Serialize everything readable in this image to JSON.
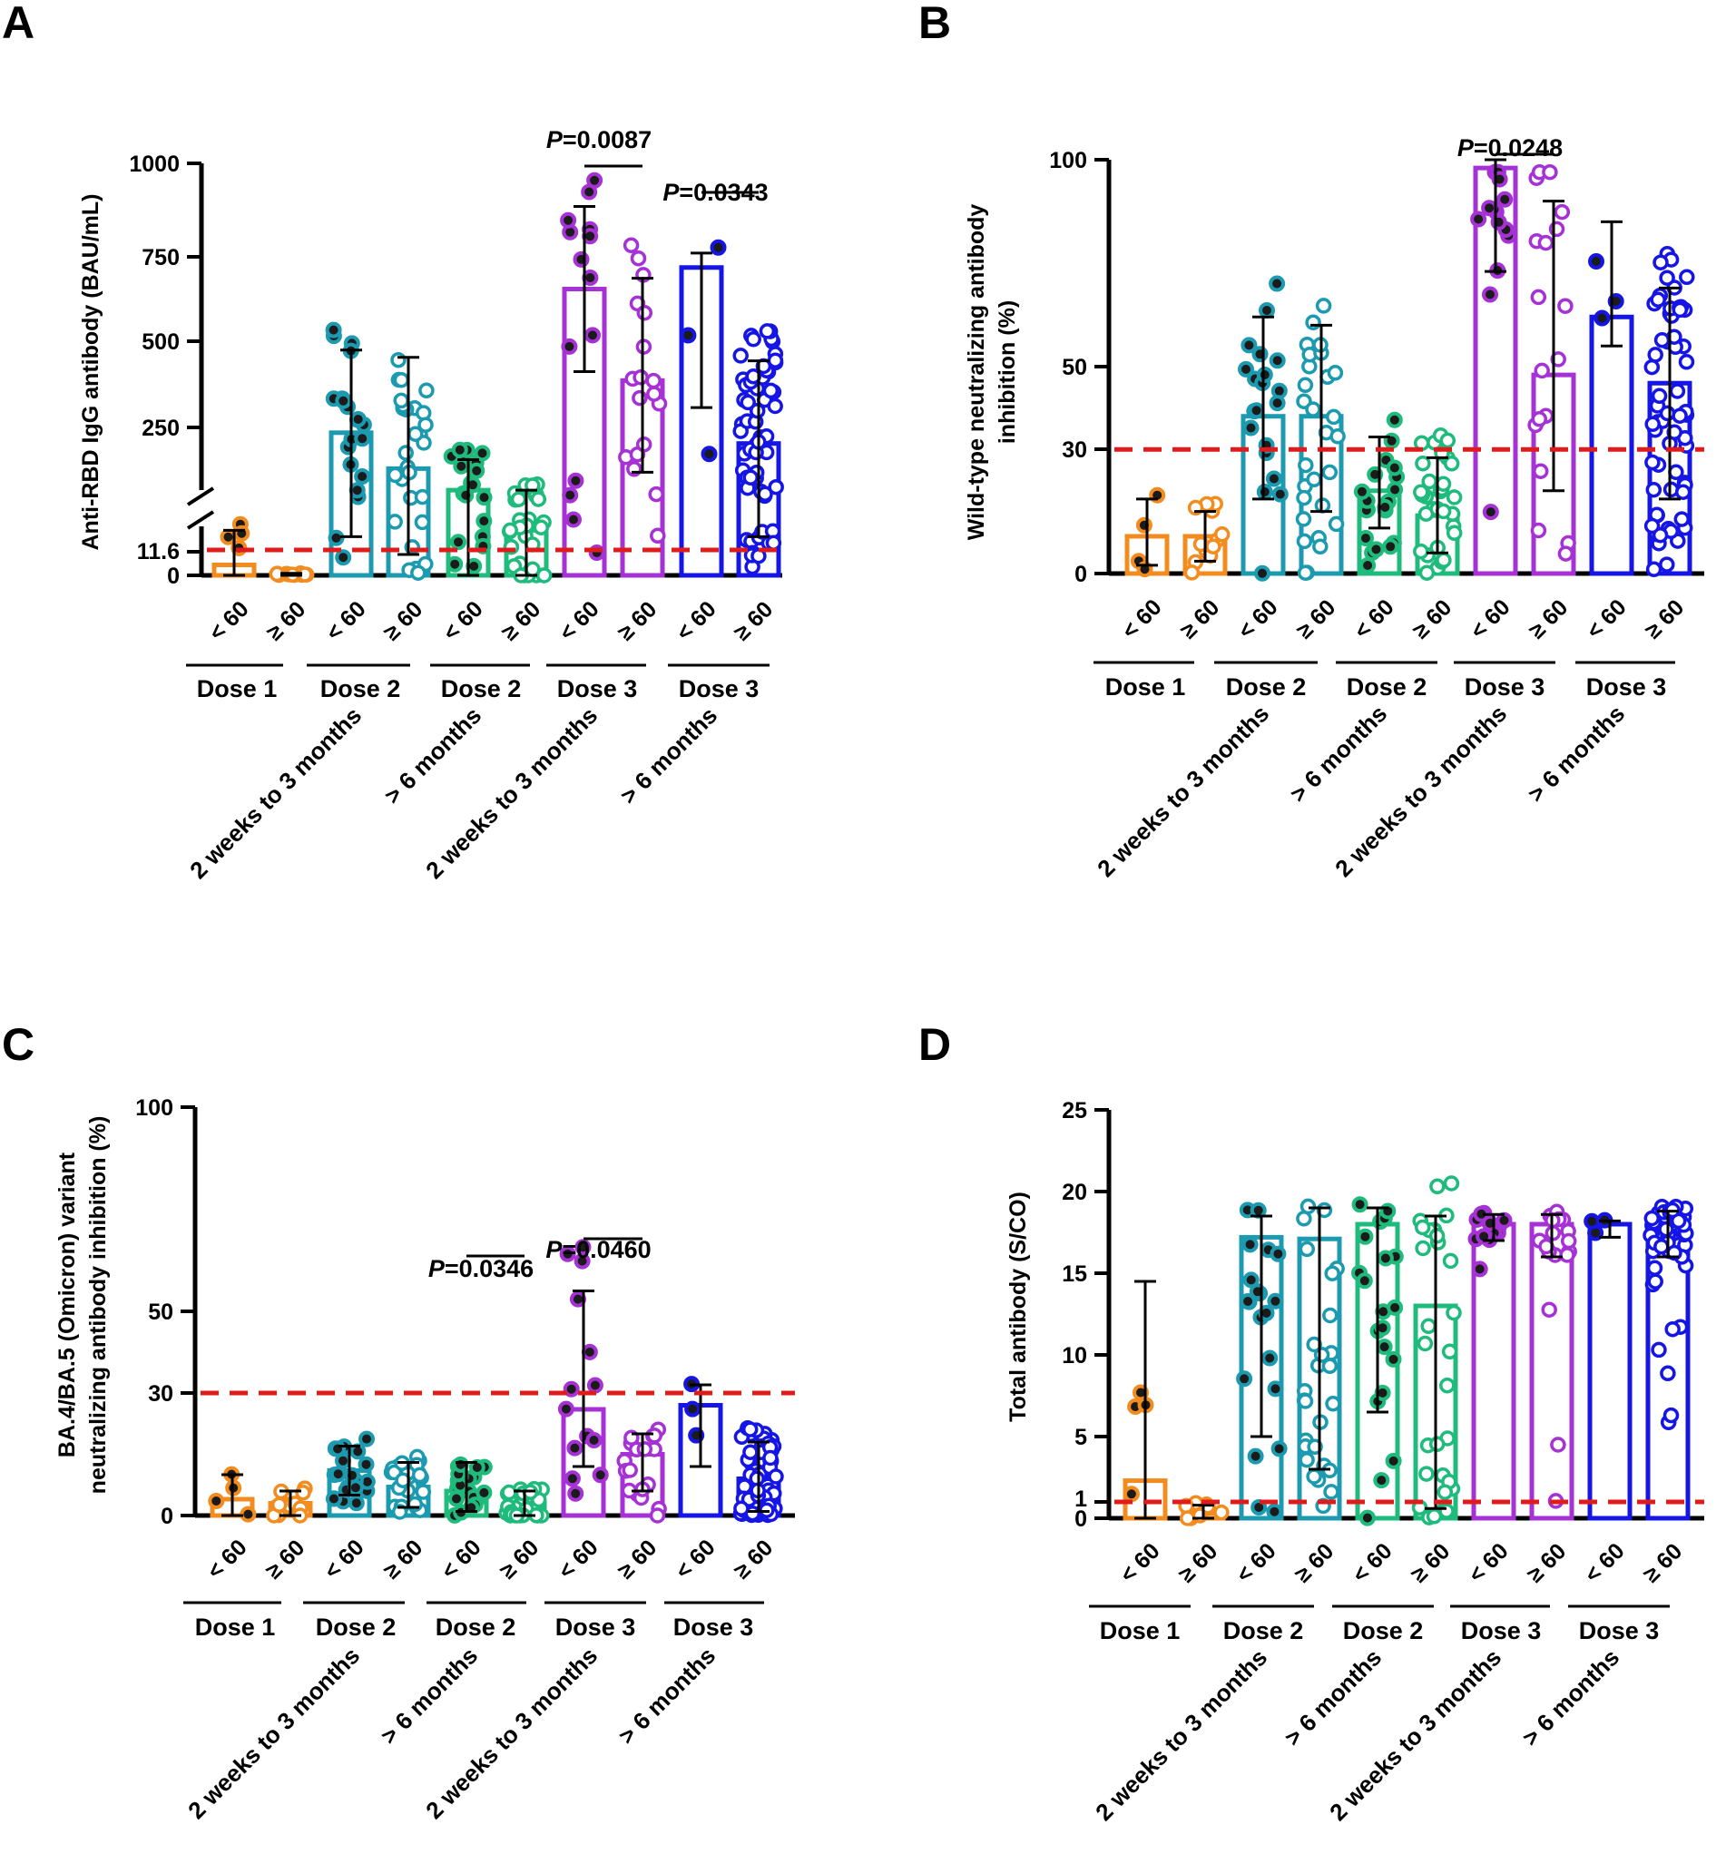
{
  "colors": {
    "dose1": "#f28c1e",
    "dose2_early": "#1b9ab0",
    "dose2_late": "#1fbb7c",
    "dose3_early": "#a632d6",
    "dose3_late": "#1515e6",
    "cutoff": "#e01b1b",
    "dark_fill": "#1b1b1b"
  },
  "common": {
    "categories": [
      "< 60",
      "≥ 60",
      "< 60",
      "≥ 60",
      "< 60",
      "≥ 60",
      "< 60",
      "≥ 60",
      "< 60",
      "≥ 60"
    ],
    "dose_groups": [
      "Dose 1",
      "Dose 2",
      "Dose 2",
      "Dose 3",
      "Dose 3"
    ],
    "time_groups": [
      "2 weeks to 3 months",
      "> 6 months",
      "2 weeks to 3 months",
      "> 6 months"
    ]
  },
  "chart_data": [
    {
      "panel": "A",
      "type": "bar",
      "ylabel": "Anti-RBD IgG antibody (BAU/mL)",
      "yticks": [
        "1000",
        "750",
        "500",
        "250",
        "11.6",
        "0"
      ],
      "yaxis_break": true,
      "ylim": [
        0,
        1000
      ],
      "cutoff": 11.6,
      "bar_means": [
        5,
        1,
        250,
        150,
        90,
        40,
        650,
        395,
        710,
        220
      ],
      "error_upper": [
        40,
        1,
        480,
        460,
        175,
        90,
        880,
        680,
        750,
        450
      ],
      "error_lower": [
        0,
        0,
        30,
        10,
        0,
        0,
        420,
        140,
        320,
        30
      ],
      "p_values": [
        {
          "label": "P=0.0087",
          "groups": [
            6,
            7
          ]
        },
        {
          "label": "P=0.0343",
          "groups": [
            8,
            9
          ]
        }
      ]
    },
    {
      "panel": "B",
      "type": "bar",
      "ylabel_line1": "Wild-type neutralizing antibody",
      "ylabel_line2": "inhibition (%)",
      "yticks": [
        "100",
        "50",
        "30",
        "0"
      ],
      "ylim": [
        0,
        100
      ],
      "cutoff": 30,
      "bar_means": [
        9,
        9,
        38,
        38,
        20,
        14,
        98,
        48,
        62,
        46
      ],
      "error_upper": [
        18,
        15,
        62,
        60,
        33,
        28,
        100,
        90,
        85,
        69
      ],
      "error_lower": [
        2,
        3,
        18,
        15,
        11,
        5,
        73,
        20,
        55,
        18
      ],
      "p_values": [
        {
          "label": "P=0.0248",
          "groups": [
            6,
            7
          ]
        }
      ]
    },
    {
      "panel": "C",
      "type": "bar",
      "ylabel_line1": "BA.4/BA.5 (Omicron) variant",
      "ylabel_line2": "neutralizing antibody inhibition (%)",
      "yticks": [
        "100",
        "50",
        "30",
        "0"
      ],
      "ylim": [
        0,
        100
      ],
      "cutoff": 30,
      "bar_means": [
        4,
        3,
        11,
        7,
        6,
        3,
        26,
        15,
        27,
        9
      ],
      "error_upper": [
        10,
        6,
        17,
        13,
        13,
        6,
        55,
        20,
        32,
        18
      ],
      "error_lower": [
        0,
        0,
        5,
        2,
        1,
        0,
        12,
        6,
        12,
        1
      ],
      "p_values": [
        {
          "label": "P=0.0346",
          "groups": [
            4,
            5
          ]
        },
        {
          "label": "P=0.0460",
          "groups": [
            6,
            7
          ]
        }
      ]
    },
    {
      "panel": "D",
      "type": "bar",
      "ylabel": "Total antibody (S/CO)",
      "yticks": [
        "25",
        "20",
        "15",
        "10",
        "5",
        "1",
        "0"
      ],
      "ylim": [
        0,
        25
      ],
      "cutoff": 1,
      "bar_means": [
        2.3,
        0.3,
        17.2,
        17.1,
        18,
        13,
        18,
        18,
        18,
        18
      ],
      "error_upper": [
        14.5,
        0.8,
        18.5,
        19,
        19,
        18.5,
        18.6,
        18.6,
        18.2,
        18.8
      ],
      "error_lower": [
        0,
        0,
        5,
        3,
        6.5,
        0.6,
        17,
        16,
        17.2,
        16
      ],
      "p_values": []
    }
  ]
}
